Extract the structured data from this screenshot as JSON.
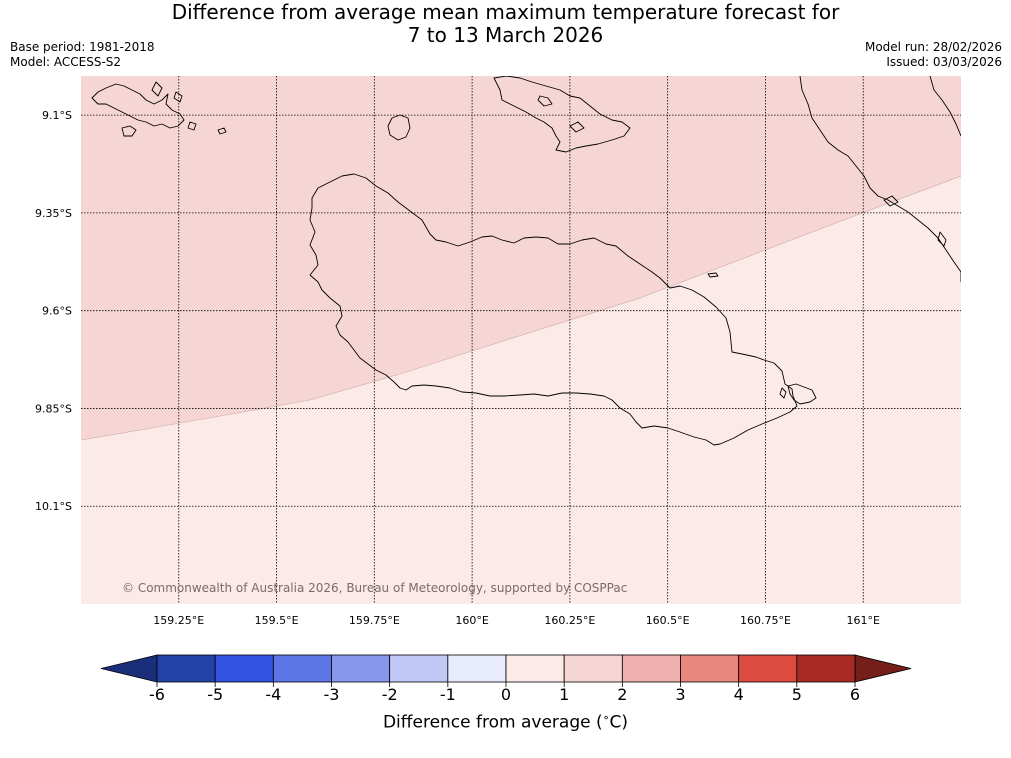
{
  "title": {
    "line1": "Difference from average mean maximum temperature forecast for",
    "line2": "7 to 13 March 2026"
  },
  "meta": {
    "base_period": "Base period: 1981-2018",
    "model": "Model: ACCESS-S2",
    "model_run": "Model run: 28/02/2026",
    "issued": "Issued: 03/03/2026"
  },
  "map": {
    "lat_labels": [
      "9.1°S",
      "9.35°S",
      "9.6°S",
      "9.85°S",
      "10.1°S"
    ],
    "lon_labels": [
      "159.25°E",
      "159.5°E",
      "159.75°E",
      "160°E",
      "160.25°E",
      "160.5°E",
      "160.75°E",
      "161°E"
    ],
    "lat_values": [
      -9.1,
      -9.35,
      -9.6,
      -9.85,
      -10.1
    ],
    "lon_values": [
      159.25,
      159.5,
      159.75,
      160.0,
      160.25,
      160.5,
      160.75,
      161.0
    ],
    "lon_range": [
      159.0,
      161.25
    ],
    "lat_range": [
      -10.35,
      -9.0
    ],
    "regions": [
      {
        "name": "1 to 2",
        "color": "#f6d6d4"
      },
      {
        "name": "0 to 1",
        "color": "#fbeae8"
      }
    ],
    "copyright": "© Commonwealth of Australia 2026, Bureau of Meteorology, supported by COSPPac"
  },
  "colorbar": {
    "ticks": [
      "-6",
      "-5",
      "-4",
      "-3",
      "-2",
      "-1",
      "0",
      "1",
      "2",
      "3",
      "4",
      "5",
      "6"
    ],
    "colors": [
      "#2342a8",
      "#3253e0",
      "#5c76e6",
      "#8797ec",
      "#c1c8f5",
      "#e8ebfb",
      "#fbeae8",
      "#f6d6d4",
      "#efb1ad",
      "#e78780",
      "#dc4b40",
      "#a82a24"
    ],
    "under_color": "#1a2e7a",
    "over_color": "#751e1a",
    "label": "Difference from average (",
    "label_unit": "C)",
    "label_degree": "∘"
  }
}
